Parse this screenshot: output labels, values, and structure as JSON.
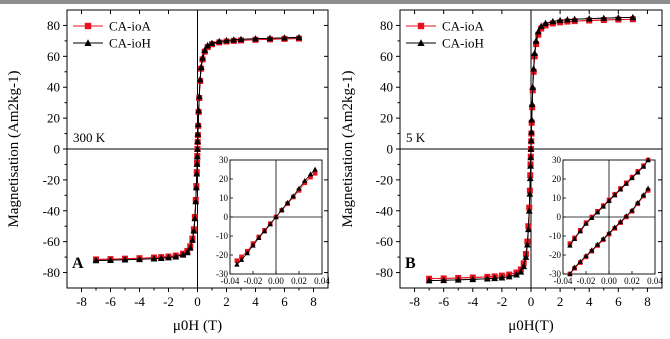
{
  "chart_data": [
    {
      "panel": "A",
      "type": "line",
      "temperature": "300 K",
      "xlabel": "μ0H (T)",
      "ylabel": "Magnetisation (Am2kg-1)",
      "xlim": [
        -9,
        9
      ],
      "ylim": [
        -90,
        90
      ],
      "xticks": [
        -8,
        -6,
        -4,
        -2,
        0,
        2,
        4,
        6,
        8
      ],
      "yticks": [
        -80,
        -60,
        -40,
        -20,
        0,
        20,
        40,
        60,
        80
      ],
      "legend": {
        "position": "top-left",
        "entries": [
          "CA-ioA",
          "CA-ioH"
        ]
      },
      "series": [
        {
          "name": "CA-ioA",
          "color": "#e8101c",
          "marker": "square",
          "x": [
            -7,
            -6,
            -5,
            -4,
            -3,
            -2.5,
            -2,
            -1.5,
            -1,
            -0.7,
            -0.5,
            -0.35,
            -0.25,
            -0.18,
            -0.12,
            -0.08,
            -0.05,
            -0.03,
            -0.015,
            0,
            0.015,
            0.03,
            0.05,
            0.08,
            0.12,
            0.18,
            0.25,
            0.35,
            0.5,
            0.7,
            1,
            1.5,
            2,
            2.5,
            3,
            4,
            5,
            6,
            7
          ],
          "y": [
            -71.5,
            -71.3,
            -71,
            -70.7,
            -70.3,
            -70,
            -69.6,
            -69,
            -67.8,
            -66,
            -63,
            -58,
            -52,
            -44,
            -33,
            -24,
            -15,
            -9,
            -4.5,
            0,
            4.5,
            9,
            15,
            24,
            33,
            44,
            52,
            58,
            63,
            66,
            67.8,
            69,
            69.6,
            70,
            70.3,
            70.7,
            71,
            71.3,
            71.5
          ]
        },
        {
          "name": "CA-ioH",
          "color": "#000000",
          "marker": "triangle",
          "x": [
            -7,
            -6,
            -5,
            -4,
            -3,
            -2.5,
            -2,
            -1.5,
            -1,
            -0.7,
            -0.5,
            -0.35,
            -0.25,
            -0.18,
            -0.12,
            -0.08,
            -0.05,
            -0.03,
            -0.015,
            0,
            0.015,
            0.03,
            0.05,
            0.08,
            0.12,
            0.18,
            0.25,
            0.35,
            0.5,
            0.7,
            1,
            1.5,
            2,
            2.5,
            3,
            4,
            5,
            6,
            7
          ],
          "y": [
            -72.2,
            -72,
            -71.7,
            -71.4,
            -71,
            -70.7,
            -70.3,
            -69.7,
            -68.5,
            -67,
            -64,
            -59,
            -53,
            -45,
            -34,
            -25,
            -16,
            -9.8,
            -5,
            0,
            5,
            9.8,
            16,
            25,
            34,
            45,
            53,
            59,
            64,
            67,
            68.5,
            69.7,
            70.3,
            70.7,
            71,
            71.4,
            71.7,
            72,
            72.2
          ]
        }
      ],
      "inset": {
        "xlim": [
          -0.04,
          0.04
        ],
        "ylim": [
          -30,
          30
        ],
        "xticks": [
          "-0.04",
          "-0.02",
          "0.00",
          "0.02",
          "0.04"
        ],
        "yticks": [
          "-30",
          "-20",
          "-10",
          "0",
          "10",
          "20",
          "30"
        ],
        "series": [
          {
            "name": "CA-ioA",
            "x": [
              -0.034,
              -0.03,
              -0.025,
              -0.02,
              -0.015,
              -0.01,
              -0.005,
              0,
              0.005,
              0.01,
              0.015,
              0.02,
              0.025,
              0.03,
              0.034
            ],
            "y": [
              -23,
              -21,
              -18,
              -14,
              -10.5,
              -7,
              -3.5,
              0,
              3.5,
              7,
              10.5,
              14,
              18,
              21,
              23
            ]
          },
          {
            "name": "CA-ioH",
            "x": [
              -0.034,
              -0.03,
              -0.025,
              -0.02,
              -0.015,
              -0.01,
              -0.005,
              0,
              0.005,
              0.01,
              0.015,
              0.02,
              0.025,
              0.03,
              0.034
            ],
            "y": [
              -25,
              -22.5,
              -19,
              -15,
              -11,
              -7.5,
              -3.8,
              0,
              3.8,
              7.5,
              11,
              15,
              19,
              22.5,
              25
            ]
          }
        ]
      }
    },
    {
      "panel": "B",
      "type": "line",
      "temperature": "5 K",
      "xlabel": "μ0H(T)",
      "ylabel": "Magnetisation (Am2kg-1)",
      "xlim": [
        -9,
        9
      ],
      "ylim": [
        -90,
        90
      ],
      "xticks": [
        -8,
        -6,
        -4,
        -2,
        0,
        2,
        4,
        6,
        8
      ],
      "yticks": [
        -80,
        -60,
        -40,
        -20,
        0,
        20,
        40,
        60,
        80
      ],
      "legend": {
        "position": "top-left",
        "entries": [
          "CA-ioA",
          "CA-ioH"
        ]
      },
      "series": [
        {
          "name": "CA-ioA",
          "color": "#e8101c",
          "marker": "square",
          "x": [
            -7,
            -6,
            -5,
            -4,
            -3,
            -2.5,
            -2,
            -1.5,
            -1,
            -0.7,
            -0.5,
            -0.35,
            -0.25,
            -0.18,
            -0.12,
            -0.08,
            -0.05,
            -0.03,
            -0.015,
            0,
            0.015,
            0.03,
            0.05,
            0.08,
            0.12,
            0.18,
            0.25,
            0.35,
            0.5,
            0.7,
            1,
            1.5,
            2,
            2.5,
            3,
            4,
            5,
            6,
            7
          ],
          "y": [
            -84,
            -83.8,
            -83.5,
            -83.2,
            -82.8,
            -82.5,
            -82,
            -81.3,
            -80,
            -78,
            -74,
            -68,
            -60,
            -50,
            -38,
            -27,
            -17,
            -10,
            -5,
            0,
            5,
            10,
            17,
            27,
            38,
            50,
            60,
            68,
            74,
            78,
            80,
            81.3,
            82,
            82.5,
            82.8,
            83.2,
            83.5,
            83.8,
            84
          ]
        },
        {
          "name": "CA-ioH",
          "color": "#000000",
          "marker": "triangle",
          "x": [
            -7,
            -6,
            -5,
            -4,
            -3,
            -2.5,
            -2,
            -1.5,
            -1,
            -0.7,
            -0.5,
            -0.35,
            -0.25,
            -0.18,
            -0.12,
            -0.08,
            -0.05,
            -0.03,
            -0.015,
            0,
            0.015,
            0.03,
            0.05,
            0.08,
            0.12,
            0.18,
            0.25,
            0.35,
            0.5,
            0.7,
            1,
            1.5,
            2,
            2.5,
            3,
            4,
            5,
            6,
            7
          ],
          "y": [
            -85.2,
            -85,
            -84.7,
            -84.4,
            -84,
            -83.7,
            -83.3,
            -82.6,
            -81.4,
            -79.5,
            -76,
            -70,
            -62,
            -52,
            -40,
            -29,
            -19,
            -11,
            -5.5,
            0,
            5.5,
            11,
            19,
            29,
            40,
            52,
            62,
            70,
            76,
            79.5,
            81.4,
            82.6,
            83.3,
            83.7,
            84,
            84.4,
            84.7,
            85,
            85.2
          ]
        }
      ],
      "inset": {
        "xlim": [
          -0.04,
          0.04
        ],
        "ylim": [
          -30,
          30
        ],
        "xticks": [
          "-0.04",
          "-0.02",
          "0.00",
          "0.02",
          "0.04"
        ],
        "yticks": [
          "-30",
          "-20",
          "-10",
          "0",
          "10",
          "20",
          "30"
        ],
        "series": [
          {
            "name": "CA-ioA",
            "branch": "descending",
            "x": [
              0.034,
              0.03,
              0.025,
              0.02,
              0.015,
              0.01,
              0.005,
              0,
              -0.005,
              -0.01,
              -0.015,
              -0.02,
              -0.025,
              -0.03,
              -0.034
            ],
            "y": [
              30,
              27,
              24,
              21,
              18,
              15,
              12,
              9,
              6,
              3,
              0,
              -3,
              -7,
              -11,
              -14
            ]
          },
          {
            "name": "CA-ioA",
            "branch": "ascending",
            "x": [
              -0.034,
              -0.03,
              -0.025,
              -0.02,
              -0.015,
              -0.01,
              -0.005,
              0,
              0.005,
              0.01,
              0.015,
              0.02,
              0.025,
              0.03,
              0.034
            ],
            "y": [
              -30,
              -27,
              -24,
              -21,
              -18,
              -15,
              -12,
              -9,
              -6,
              -3,
              0,
              3,
              7,
              11,
              14
            ]
          },
          {
            "name": "CA-ioH",
            "branch": "descending",
            "x": [
              0.034,
              0.03,
              0.025,
              0.02,
              0.015,
              0.01,
              0.005,
              0,
              -0.005,
              -0.01,
              -0.015,
              -0.02,
              -0.025,
              -0.03,
              -0.034
            ],
            "y": [
              30,
              26.5,
              23.5,
              20.5,
              17.5,
              14.5,
              11.5,
              8.5,
              5.5,
              2.5,
              -0.5,
              -3.5,
              -7.5,
              -11.5,
              -15
            ]
          },
          {
            "name": "CA-ioH",
            "branch": "ascending",
            "x": [
              -0.034,
              -0.03,
              -0.025,
              -0.02,
              -0.015,
              -0.01,
              -0.005,
              0,
              0.005,
              0.01,
              0.015,
              0.02,
              0.025,
              0.03,
              0.034
            ],
            "y": [
              -30,
              -26.5,
              -23.5,
              -20.5,
              -17.5,
              -14.5,
              -11.5,
              -8.5,
              -5.5,
              -2.5,
              0.5,
              3.5,
              7.5,
              11.5,
              15
            ]
          }
        ]
      }
    }
  ]
}
